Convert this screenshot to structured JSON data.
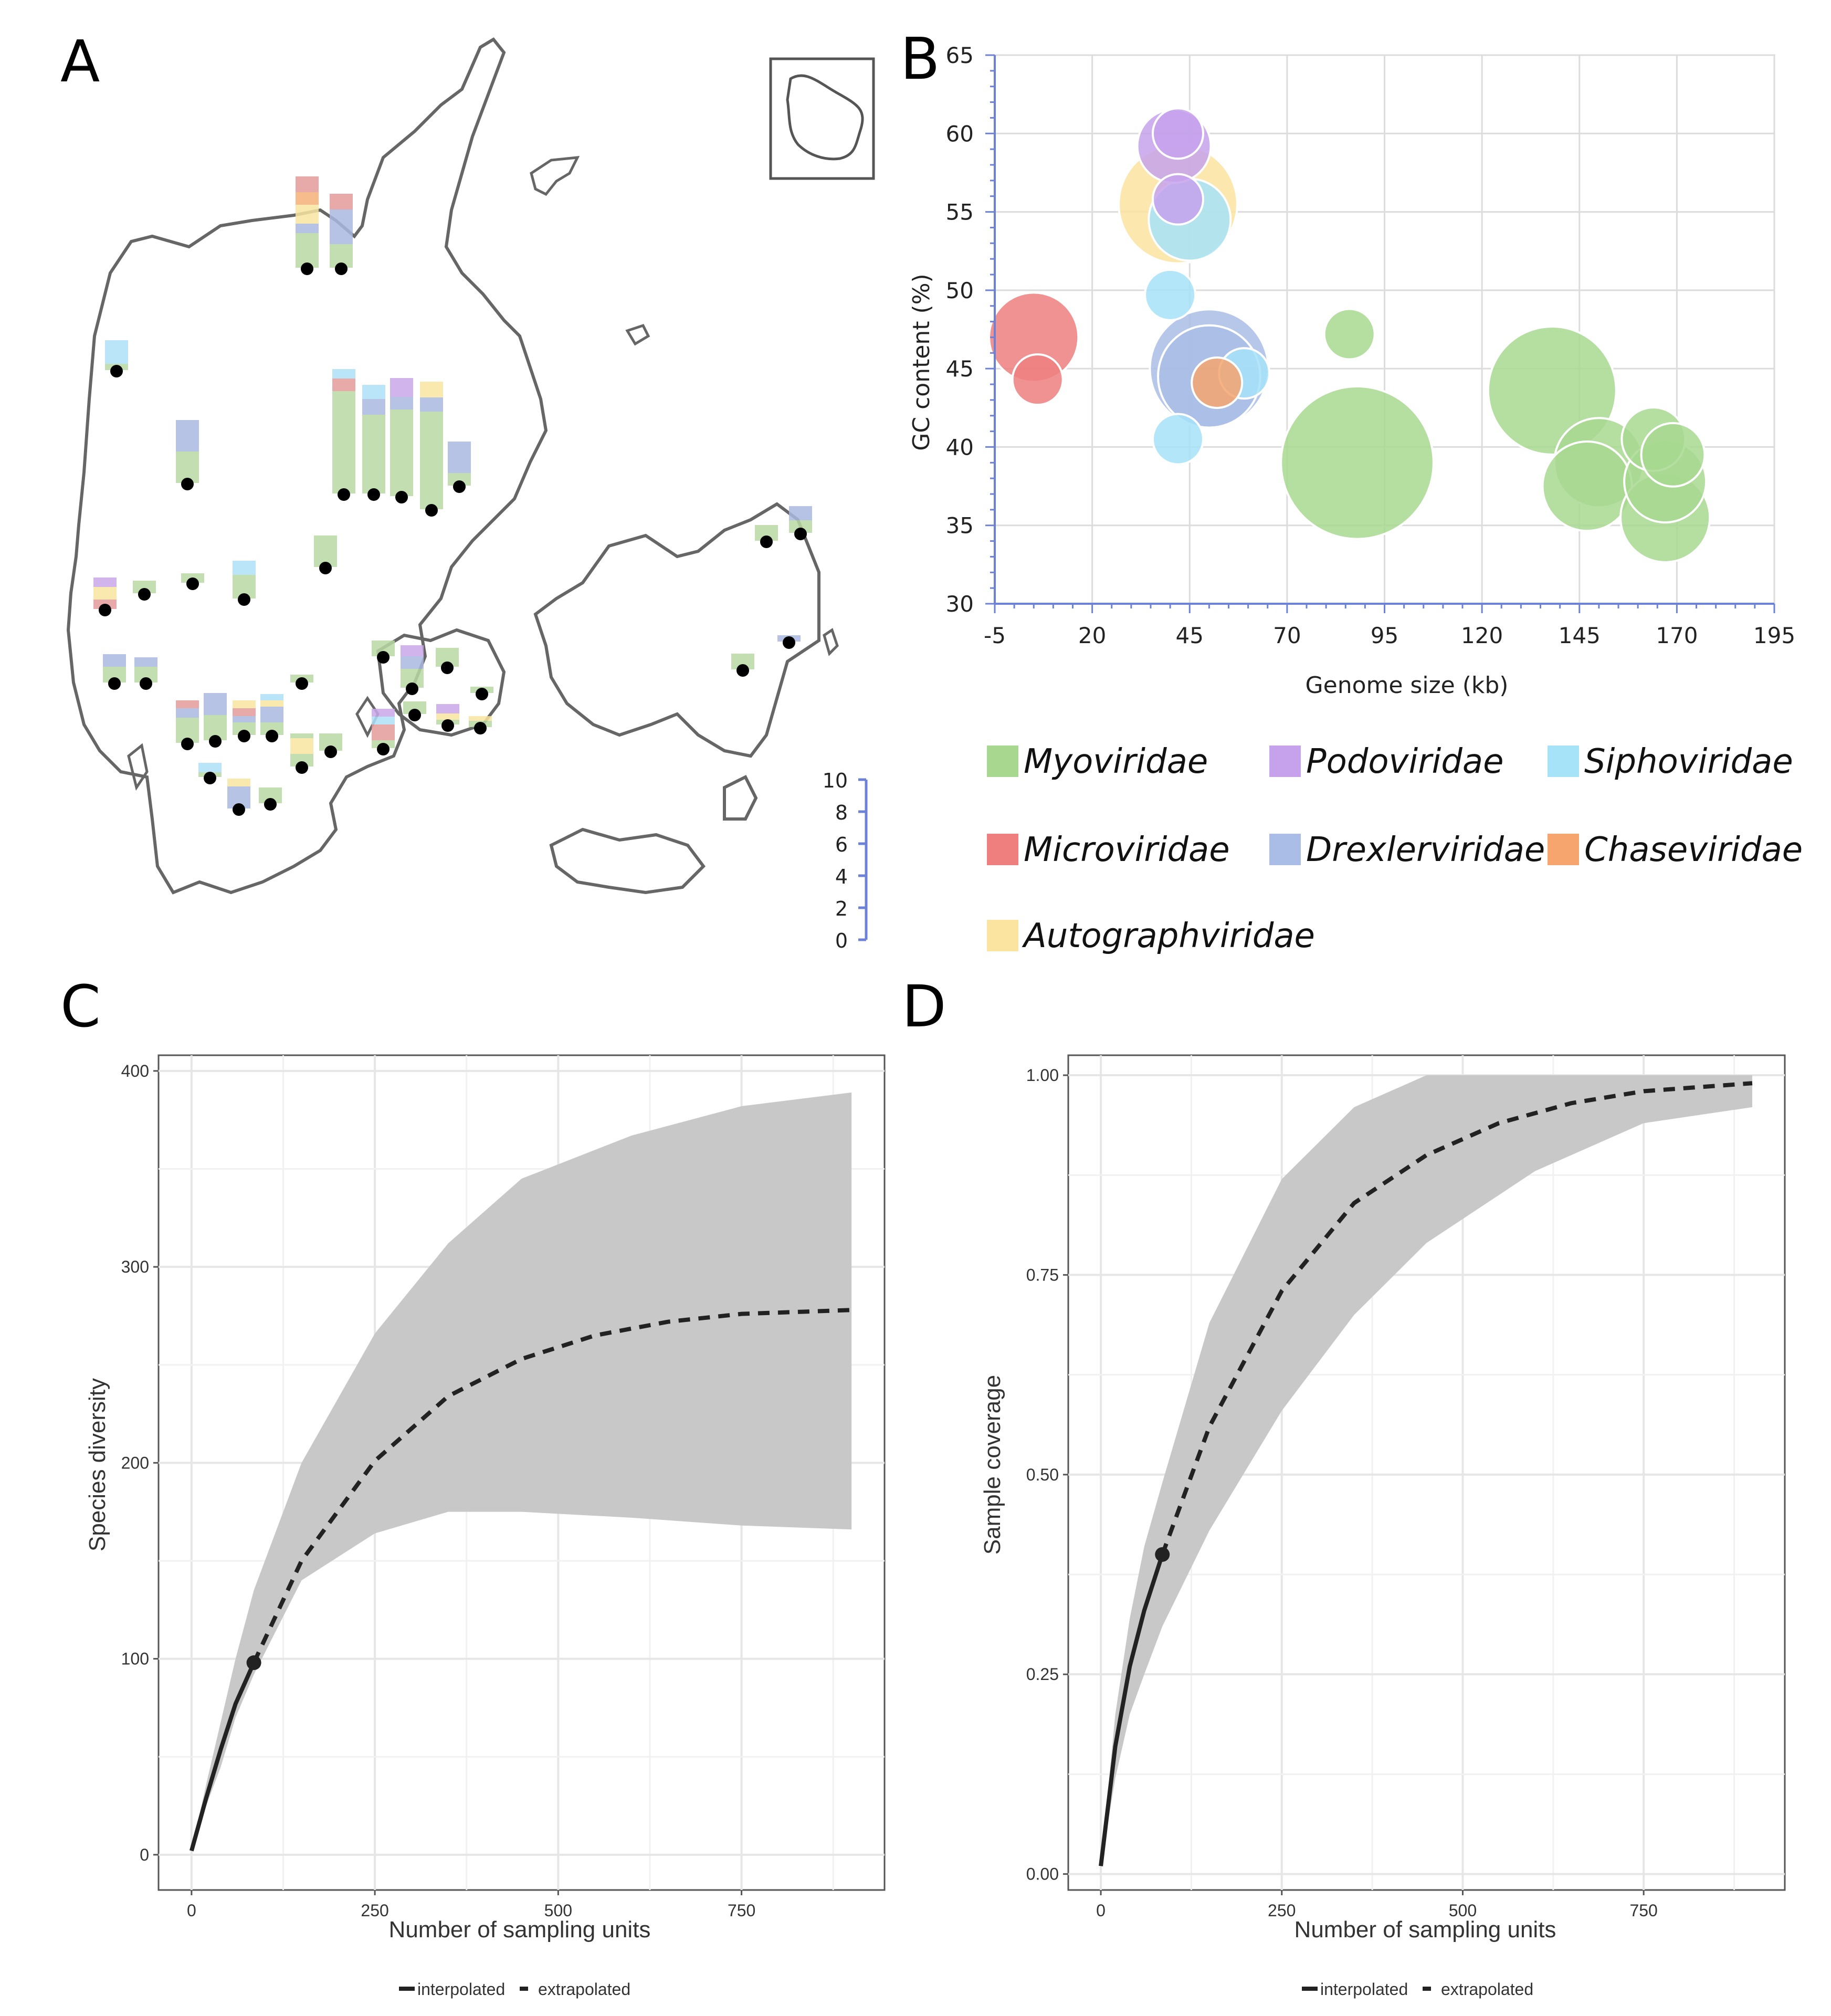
{
  "figure": {
    "panel_labels": [
      "A",
      "B",
      "C",
      "D"
    ]
  },
  "map": {
    "panel": "A",
    "scale_ticks": [
      "10",
      "8",
      "6",
      "4",
      "2",
      "0"
    ],
    "family_colors": {
      "Myoviridae": "#b9d9a3",
      "Podoviridae": "#c9a7e8",
      "Siphoviridae": "#aee1f7",
      "Microviridae": "#e49a9a",
      "Drexlerviridae": "#aab9e0",
      "Chaseviridae": "#f5b078",
      "Autographviridae": "#f9e5a1"
    }
  },
  "chart_data": [
    {
      "panel": "B",
      "type": "scatter",
      "subtype": "bubble",
      "xlabel": "Genome size (kb)",
      "ylabel": "GC content (%)",
      "xlim": [
        -5,
        195
      ],
      "ylim": [
        30,
        65
      ],
      "xticks": [
        "-5",
        "20",
        "45",
        "70",
        "95",
        "120",
        "145",
        "170",
        "195"
      ],
      "yticks": [
        "30",
        "35",
        "40",
        "45",
        "50",
        "55",
        "60",
        "65"
      ],
      "legend": [
        "Myoviridae",
        "Podoviridae",
        "Siphoviridae",
        "Microviridae",
        "Drexlerviridae",
        "Chaseviridae",
        "Autographviridae"
      ],
      "colors": {
        "Myoviridae": "#a8d890",
        "Podoviridae": "#c6a2ec",
        "Siphoviridae": "#a6e2f8",
        "Microviridae": "#ef7f7f",
        "Drexlerviridae": "#a9bde6",
        "Chaseviridae": "#f6a56e",
        "Autographviridae": "#fbe3a0"
      },
      "points": [
        {
          "family": "Autographviridae",
          "x": 42,
          "y": 55.5,
          "size": 10
        },
        {
          "family": "Podoviridae",
          "x": 41,
          "y": 59.2,
          "size": 3
        },
        {
          "family": "Podoviridae",
          "x": 42,
          "y": 60,
          "size": 1
        },
        {
          "family": "Podoviridae",
          "x": 42,
          "y": 55.8,
          "size": 1
        },
        {
          "family": "Siphoviridae",
          "x": 45,
          "y": 54.5,
          "size": 4
        },
        {
          "family": "Siphoviridae",
          "x": 40,
          "y": 49.7,
          "size": 1
        },
        {
          "family": "Siphoviridae",
          "x": 42,
          "y": 40.5,
          "size": 1
        },
        {
          "family": "Siphoviridae",
          "x": 59,
          "y": 44.7,
          "size": 1
        },
        {
          "family": "Microviridae",
          "x": 5,
          "y": 47,
          "size": 5
        },
        {
          "family": "Microviridae",
          "x": 6,
          "y": 44.3,
          "size": 1
        },
        {
          "family": "Drexlerviridae",
          "x": 50,
          "y": 45,
          "size": 10
        },
        {
          "family": "Drexlerviridae",
          "x": 50,
          "y": 44.5,
          "size": 7
        },
        {
          "family": "Chaseviridae",
          "x": 52,
          "y": 44.1,
          "size": 1
        },
        {
          "family": "Myoviridae",
          "x": 86,
          "y": 47.2,
          "size": 1
        },
        {
          "family": "Myoviridae",
          "x": 88,
          "y": 39,
          "size": 18
        },
        {
          "family": "Myoviridae",
          "x": 138,
          "y": 43.6,
          "size": 12
        },
        {
          "family": "Myoviridae",
          "x": 150,
          "y": 39,
          "size": 5
        },
        {
          "family": "Myoviridae",
          "x": 147,
          "y": 37.5,
          "size": 5
        },
        {
          "family": "Myoviridae",
          "x": 164,
          "y": 40.5,
          "size": 2
        },
        {
          "family": "Myoviridae",
          "x": 169,
          "y": 39.5,
          "size": 2
        },
        {
          "family": "Myoviridae",
          "x": 167,
          "y": 37.8,
          "size": 4
        },
        {
          "family": "Myoviridae",
          "x": 167,
          "y": 35.5,
          "size": 5
        }
      ]
    },
    {
      "panel": "C",
      "type": "line",
      "xlabel": "Number of sampling units",
      "ylabel": "Species diversity",
      "xlim": [
        -45,
        945
      ],
      "ylim": [
        -18,
        408
      ],
      "xticks": [
        0,
        250,
        500,
        750
      ],
      "yticks": [
        0,
        100,
        200,
        300,
        400
      ],
      "xtick_labels": [
        "0",
        "250",
        "500",
        "750"
      ],
      "ytick_labels": [
        "0",
        "100",
        "200",
        "300",
        "400"
      ],
      "observed": {
        "x": 85,
        "y": 98
      },
      "interpolated": {
        "x": [
          0,
          20,
          40,
          60,
          85
        ],
        "y": [
          2,
          29,
          54,
          77,
          98
        ]
      },
      "extrapolated": {
        "x": [
          85,
          150,
          250,
          350,
          450,
          550,
          650,
          750,
          900
        ],
        "y": [
          98,
          150,
          201,
          234,
          253,
          265,
          272,
          276,
          278
        ]
      },
      "ci_upper": [
        2,
        36,
        68,
        100,
        135,
        200,
        266,
        312,
        345,
        367,
        382,
        389
      ],
      "ci_lower": [
        2,
        25,
        45,
        70,
        92,
        140,
        164,
        175,
        175,
        172,
        168,
        166
      ],
      "ci_x": [
        0,
        20,
        40,
        60,
        85,
        150,
        250,
        350,
        450,
        600,
        750,
        900
      ],
      "legend": [
        "interpolated",
        "extrapolated"
      ]
    },
    {
      "panel": "D",
      "type": "line",
      "xlabel": "Number of sampling units",
      "ylabel": "Sample coverage",
      "xlim": [
        -45,
        945
      ],
      "ylim": [
        -0.02,
        1.025
      ],
      "xticks": [
        0,
        250,
        500,
        750
      ],
      "yticks": [
        0,
        0.25,
        0.5,
        0.75,
        1
      ],
      "xtick_labels": [
        "0",
        "250",
        "500",
        "750"
      ],
      "ytick_labels": [
        "0.00",
        "0.25",
        "0.50",
        "0.75",
        "1.00"
      ],
      "observed": {
        "x": 85,
        "y": 0.4
      },
      "interpolated": {
        "x": [
          0,
          20,
          40,
          60,
          85
        ],
        "y": [
          0.01,
          0.16,
          0.26,
          0.33,
          0.4
        ]
      },
      "extrapolated": {
        "x": [
          85,
          150,
          250,
          350,
          450,
          550,
          650,
          750,
          900
        ],
        "y": [
          0.4,
          0.56,
          0.73,
          0.84,
          0.9,
          0.94,
          0.965,
          0.98,
          0.99
        ]
      },
      "ci_x": [
        0,
        20,
        40,
        60,
        85,
        150,
        250,
        350,
        450,
        600,
        750,
        900
      ],
      "ci_upper": [
        0.01,
        0.2,
        0.32,
        0.41,
        0.49,
        0.69,
        0.87,
        0.96,
        1.0,
        1.0,
        1.0,
        1.0
      ],
      "ci_lower": [
        0.01,
        0.12,
        0.2,
        0.25,
        0.31,
        0.43,
        0.58,
        0.7,
        0.79,
        0.88,
        0.94,
        0.96
      ],
      "legend": [
        "interpolated",
        "extrapolated"
      ]
    }
  ]
}
